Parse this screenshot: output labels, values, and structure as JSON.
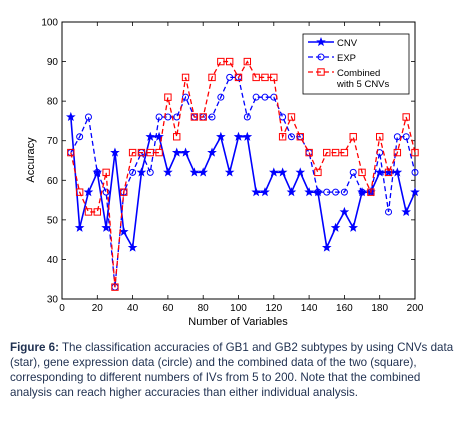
{
  "chart_data": {
    "type": "line",
    "xlabel": "Number of Variables",
    "ylabel": "Accuracy",
    "xlim": [
      0,
      200
    ],
    "ylim": [
      30,
      100
    ],
    "xticks": [
      0,
      20,
      40,
      60,
      80,
      100,
      120,
      140,
      160,
      180,
      200
    ],
    "yticks": [
      30,
      40,
      50,
      60,
      70,
      80,
      90,
      100
    ],
    "xtick_labels": [
      "0",
      "20",
      "40",
      "60",
      "80",
      "100",
      "120",
      "140",
      "160",
      "180",
      "200"
    ],
    "ytick_labels": [
      "30",
      "40",
      "50",
      "60",
      "70",
      "80",
      "90",
      "100"
    ],
    "grid": false,
    "legend_position": "top-right",
    "x": [
      5,
      10,
      15,
      20,
      25,
      30,
      35,
      40,
      45,
      50,
      55,
      60,
      65,
      70,
      75,
      80,
      85,
      90,
      95,
      100,
      105,
      110,
      115,
      120,
      125,
      130,
      135,
      140,
      145,
      150,
      155,
      160,
      165,
      170,
      175,
      180,
      185,
      190,
      195,
      200
    ],
    "series": [
      {
        "name": "CNV",
        "color": "#0000ff",
        "line": "solid",
        "marker": "star",
        "values": [
          76,
          48,
          57,
          62,
          48,
          67,
          47,
          43,
          62,
          71,
          71,
          62,
          67,
          67,
          62,
          62,
          67,
          71,
          62,
          71,
          71,
          57,
          57,
          62,
          62,
          57,
          62,
          57,
          57,
          43,
          48,
          52,
          48,
          57,
          57,
          62,
          62,
          62,
          52,
          57
        ]
      },
      {
        "name": "EXP",
        "color": "#0000ff",
        "line": "dashed",
        "marker": "circle",
        "values": [
          67,
          71,
          76,
          62,
          57,
          33,
          57,
          62,
          67,
          62,
          76,
          76,
          76,
          81,
          76,
          76,
          76,
          81,
          86,
          86,
          76,
          81,
          81,
          81,
          76,
          71,
          71,
          67,
          57,
          57,
          57,
          57,
          62,
          57,
          57,
          67,
          52,
          71,
          71,
          62
        ]
      },
      {
        "name": "Combined\nwith 5 CNVs",
        "label_lines": [
          "Combined",
          "with 5 CNVs"
        ],
        "color": "#ff0000",
        "line": "dashed",
        "marker": "square",
        "values": [
          67,
          57,
          52,
          52,
          62,
          33,
          57,
          67,
          67,
          67,
          67,
          81,
          71,
          86,
          76,
          76,
          86,
          90,
          90,
          86,
          90,
          86,
          86,
          86,
          71,
          76,
          71,
          67,
          62,
          67,
          67,
          67,
          71,
          62,
          57,
          71,
          62,
          67,
          76,
          67
        ]
      }
    ]
  },
  "caption": {
    "figure_label": "Figure 6:",
    "text": " The classification accuracies of GB1 and GB2 subtypes by using CNVs data (star), gene expression data (circle) and the combined data of the two (square), corresponding to different numbers of IVs from 5 to 200. Note that the combined analysis can reach higher accuracies than either individual analysis."
  }
}
